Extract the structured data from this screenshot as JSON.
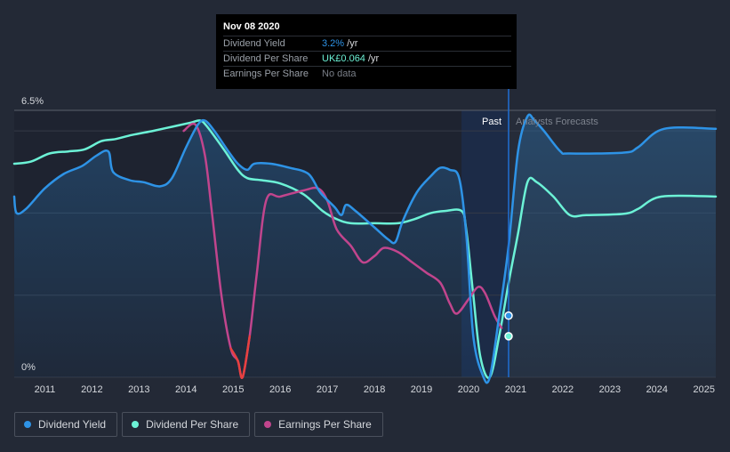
{
  "tooltip": {
    "date": "Nov 08 2020",
    "rows": [
      {
        "label": "Dividend Yield",
        "value": "3.2%",
        "unit": " /yr",
        "color": "#2e93e6"
      },
      {
        "label": "Dividend Per Share",
        "value": "UK£0.064",
        "unit": " /yr",
        "color": "#6cf2d6"
      },
      {
        "label": "Earnings Per Share",
        "value": "No data",
        "unit": "",
        "color": "#7a7f88"
      }
    ]
  },
  "chart_data": {
    "type": "line",
    "ylim": [
      0,
      6.5
    ],
    "xlim": [
      2010.35,
      2025.25
    ],
    "y_tick_labels": [
      {
        "value": 6.5,
        "label": "6.5%"
      },
      {
        "value": 0,
        "label": "0%"
      }
    ],
    "x_tick_labels": [
      "2011",
      "2012",
      "2013",
      "2014",
      "2015",
      "2016",
      "2017",
      "2018",
      "2019",
      "2020",
      "2021",
      "2022",
      "2023",
      "2024",
      "2025"
    ],
    "regions": {
      "past": {
        "label": "Past",
        "from": 2019.85,
        "to": 2020.85
      },
      "forecast": {
        "label": "Analysts Forecasts",
        "from": 2020.85
      }
    },
    "cursor_x": 2020.85,
    "series": [
      {
        "name": "Dividend Yield",
        "color": "#2e93e6",
        "values": [
          [
            2010.35,
            4.4
          ],
          [
            2010.4,
            4.0
          ],
          [
            2010.6,
            4.1
          ],
          [
            2011.0,
            4.6
          ],
          [
            2011.4,
            4.95
          ],
          [
            2011.8,
            5.15
          ],
          [
            2012.1,
            5.4
          ],
          [
            2012.35,
            5.5
          ],
          [
            2012.45,
            5.0
          ],
          [
            2012.8,
            4.8
          ],
          [
            2013.1,
            4.75
          ],
          [
            2013.45,
            4.65
          ],
          [
            2013.7,
            4.85
          ],
          [
            2014.0,
            5.6
          ],
          [
            2014.25,
            6.15
          ],
          [
            2014.4,
            6.25
          ],
          [
            2014.6,
            6.0
          ],
          [
            2014.9,
            5.5
          ],
          [
            2015.1,
            5.2
          ],
          [
            2015.3,
            5.05
          ],
          [
            2015.45,
            5.2
          ],
          [
            2015.8,
            5.2
          ],
          [
            2016.2,
            5.1
          ],
          [
            2016.6,
            4.95
          ],
          [
            2016.85,
            4.5
          ],
          [
            2017.15,
            4.15
          ],
          [
            2017.3,
            3.95
          ],
          [
            2017.4,
            4.2
          ],
          [
            2017.6,
            4.05
          ],
          [
            2018.0,
            3.65
          ],
          [
            2018.3,
            3.35
          ],
          [
            2018.45,
            3.3
          ],
          [
            2018.6,
            3.8
          ],
          [
            2018.9,
            4.5
          ],
          [
            2019.2,
            4.9
          ],
          [
            2019.4,
            5.1
          ],
          [
            2019.6,
            5.05
          ],
          [
            2019.8,
            4.85
          ],
          [
            2019.95,
            3.5
          ],
          [
            2020.1,
            1.0
          ],
          [
            2020.3,
            0.05
          ],
          [
            2020.45,
            0.0
          ],
          [
            2020.65,
            1.5
          ],
          [
            2020.85,
            3.2
          ],
          [
            2021.05,
            5.5
          ],
          [
            2021.25,
            6.35
          ],
          [
            2021.4,
            6.25
          ],
          [
            2021.6,
            6.0
          ],
          [
            2021.95,
            5.5
          ],
          [
            2022.15,
            5.45
          ],
          [
            2023.3,
            5.47
          ],
          [
            2023.6,
            5.6
          ],
          [
            2024.15,
            6.05
          ],
          [
            2025.25,
            6.05
          ]
        ]
      },
      {
        "name": "Dividend Per Share",
        "color": "#6cf2d6",
        "values": [
          [
            2010.35,
            5.2
          ],
          [
            2010.7,
            5.25
          ],
          [
            2011.1,
            5.45
          ],
          [
            2011.5,
            5.5
          ],
          [
            2011.85,
            5.55
          ],
          [
            2012.2,
            5.75
          ],
          [
            2012.5,
            5.8
          ],
          [
            2012.85,
            5.9
          ],
          [
            2013.3,
            6.0
          ],
          [
            2013.7,
            6.1
          ],
          [
            2014.1,
            6.2
          ],
          [
            2014.3,
            6.25
          ],
          [
            2014.45,
            6.1
          ],
          [
            2014.8,
            5.55
          ],
          [
            2015.1,
            5.05
          ],
          [
            2015.3,
            4.85
          ],
          [
            2015.6,
            4.8
          ],
          [
            2016.0,
            4.72
          ],
          [
            2016.5,
            4.45
          ],
          [
            2016.9,
            4.05
          ],
          [
            2017.2,
            3.85
          ],
          [
            2017.5,
            3.75
          ],
          [
            2018.0,
            3.75
          ],
          [
            2018.5,
            3.75
          ],
          [
            2018.85,
            3.85
          ],
          [
            2019.2,
            4.0
          ],
          [
            2019.5,
            4.05
          ],
          [
            2019.85,
            4.05
          ],
          [
            2019.95,
            3.6
          ],
          [
            2020.1,
            2.0
          ],
          [
            2020.25,
            0.5
          ],
          [
            2020.45,
            0.0
          ],
          [
            2020.65,
            1.0
          ],
          [
            2020.85,
            2.3
          ],
          [
            2021.05,
            3.5
          ],
          [
            2021.25,
            4.75
          ],
          [
            2021.45,
            4.75
          ],
          [
            2021.8,
            4.4
          ],
          [
            2022.15,
            3.95
          ],
          [
            2022.5,
            3.95
          ],
          [
            2023.3,
            3.98
          ],
          [
            2023.6,
            4.1
          ],
          [
            2024.1,
            4.4
          ],
          [
            2025.25,
            4.4
          ]
        ]
      },
      {
        "name": "Earnings Per Share",
        "color": "#c1458d",
        "values": [
          [
            2013.95,
            6.0
          ],
          [
            2014.2,
            6.15
          ],
          [
            2014.4,
            5.4
          ],
          [
            2014.55,
            4.0
          ],
          [
            2014.75,
            2.0
          ],
          [
            2014.95,
            0.7
          ],
          [
            2015.1,
            0.4
          ],
          [
            2015.2,
            0.0
          ],
          [
            2015.35,
            1.0
          ],
          [
            2015.5,
            2.5
          ],
          [
            2015.7,
            4.3
          ],
          [
            2016.0,
            4.4
          ],
          [
            2016.5,
            4.55
          ],
          [
            2016.8,
            4.6
          ],
          [
            2017.0,
            4.3
          ],
          [
            2017.2,
            3.6
          ],
          [
            2017.5,
            3.2
          ],
          [
            2017.75,
            2.8
          ],
          [
            2018.0,
            2.95
          ],
          [
            2018.2,
            3.15
          ],
          [
            2018.5,
            3.05
          ],
          [
            2018.8,
            2.8
          ],
          [
            2019.1,
            2.55
          ],
          [
            2019.4,
            2.3
          ],
          [
            2019.6,
            1.8
          ],
          [
            2019.75,
            1.55
          ],
          [
            2020.0,
            1.9
          ],
          [
            2020.2,
            2.2
          ],
          [
            2020.35,
            2.05
          ],
          [
            2020.55,
            1.5
          ],
          [
            2020.7,
            1.2
          ]
        ]
      }
    ]
  },
  "legend": [
    {
      "label": "Dividend Yield",
      "color": "#2e93e6"
    },
    {
      "label": "Dividend Per Share",
      "color": "#6cf2d6"
    },
    {
      "label": "Earnings Per Share",
      "color": "#c1458d"
    }
  ]
}
